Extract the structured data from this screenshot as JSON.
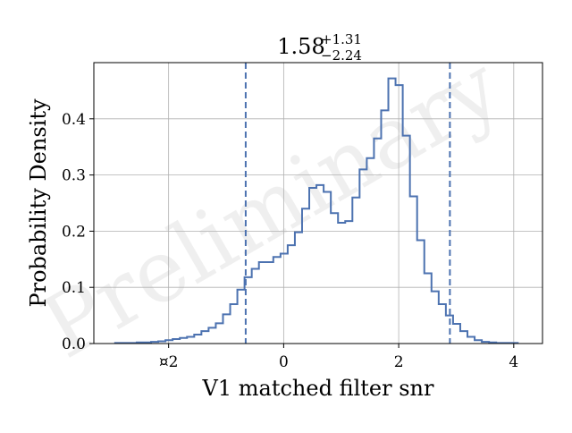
{
  "chart_data": {
    "type": "histogram",
    "title": {
      "median": "1.58",
      "upper": "+1.31",
      "lower": "−2.24"
    },
    "xlabel": "V1 matched filter snr",
    "ylabel": "Probability Density",
    "watermark": "Preliminary",
    "xlim": [
      -3.3,
      4.5
    ],
    "ylim": [
      0,
      0.5
    ],
    "x_ticks": [
      {
        "value": -2,
        "label": "¤2"
      },
      {
        "value": 0,
        "label": "0"
      },
      {
        "value": 2,
        "label": "2"
      },
      {
        "value": 4,
        "label": "4"
      }
    ],
    "y_ticks": [
      {
        "value": 0.0,
        "label": "0.0"
      },
      {
        "value": 0.1,
        "label": "0.1"
      },
      {
        "value": 0.2,
        "label": "0.2"
      },
      {
        "value": 0.3,
        "label": "0.3"
      },
      {
        "value": 0.4,
        "label": "0.4"
      }
    ],
    "grid": true,
    "color": "#4c72b0",
    "bin_edges": [
      -2.93,
      -2.805,
      -2.68,
      -2.555,
      -2.43,
      -2.305,
      -2.18,
      -2.055,
      -1.93,
      -1.805,
      -1.68,
      -1.555,
      -1.43,
      -1.305,
      -1.18,
      -1.055,
      -0.93,
      -0.805,
      -0.68,
      -0.555,
      -0.43,
      -0.305,
      -0.18,
      -0.055,
      0.07,
      0.195,
      0.32,
      0.445,
      0.57,
      0.695,
      0.82,
      0.945,
      1.07,
      1.195,
      1.32,
      1.445,
      1.57,
      1.695,
      1.82,
      1.945,
      2.07,
      2.195,
      2.32,
      2.445,
      2.57,
      2.695,
      2.82,
      2.945,
      3.07,
      3.195,
      3.32,
      3.445,
      3.57,
      3.695,
      3.82,
      3.945,
      4.07
    ],
    "densities": [
      0.001,
      0.001,
      0.001,
      0.002,
      0.002,
      0.003,
      0.004,
      0.006,
      0.008,
      0.01,
      0.012,
      0.016,
      0.022,
      0.028,
      0.036,
      0.052,
      0.07,
      0.096,
      0.118,
      0.133,
      0.145,
      0.145,
      0.154,
      0.16,
      0.175,
      0.198,
      0.24,
      0.277,
      0.282,
      0.27,
      0.232,
      0.215,
      0.218,
      0.26,
      0.31,
      0.33,
      0.365,
      0.415,
      0.472,
      0.46,
      0.37,
      0.262,
      0.184,
      0.125,
      0.093,
      0.07,
      0.05,
      0.035,
      0.022,
      0.012,
      0.006,
      0.003,
      0.002,
      0.001,
      0.001,
      0.001
    ],
    "credible_interval_lines": [
      -0.66,
      2.89
    ]
  }
}
